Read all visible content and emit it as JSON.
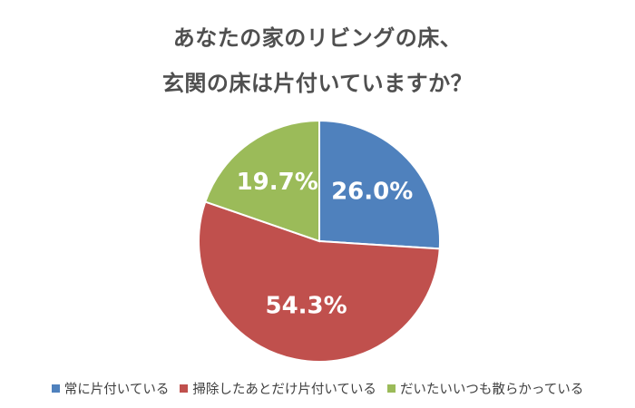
{
  "chart_data": {
    "type": "pie",
    "title_lines": [
      "あなたの家のリビングの床、",
      "玄関の床は片付いていますか？"
    ],
    "slices": [
      {
        "label": "常に片付いている",
        "value": 26.0,
        "display": "26.0%",
        "color": "#4f81bd"
      },
      {
        "label": "掃除したあとだけ片付いている",
        "value": 54.3,
        "display": "54.3%",
        "color": "#c0504d"
      },
      {
        "label": "だいたいいつも散らかっている",
        "value": 19.7,
        "display": "19.7%",
        "color": "#9bbb59"
      }
    ],
    "start_angle": "12 o'clock",
    "direction": "clockwise",
    "legend_position": "bottom"
  }
}
